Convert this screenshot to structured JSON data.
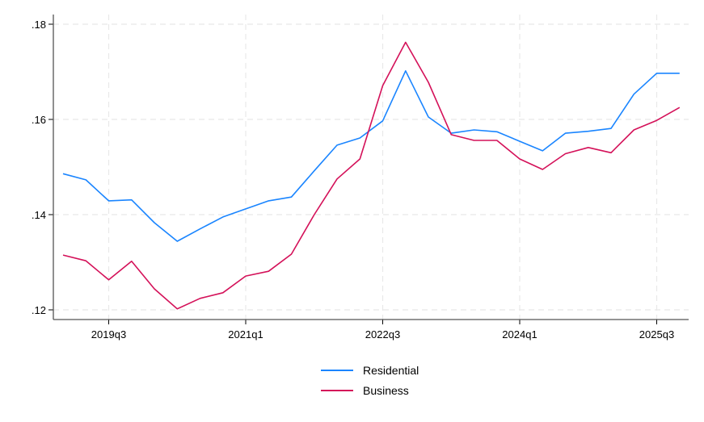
{
  "chart_data": {
    "type": "line",
    "title": "",
    "xlabel": "",
    "ylabel": "",
    "x": [
      "2019q1",
      "2019q2",
      "2019q3",
      "2019q4",
      "2020q1",
      "2020q2",
      "2020q3",
      "2020q4",
      "2021q1",
      "2021q2",
      "2021q3",
      "2021q4",
      "2022q1",
      "2022q2",
      "2022q3",
      "2022q4",
      "2023q1",
      "2023q2",
      "2023q3",
      "2023q4",
      "2024q1",
      "2024q2",
      "2024q3",
      "2024q4",
      "2025q1",
      "2025q2",
      "2025q3",
      "2025q4"
    ],
    "series": [
      {
        "name": "Residential",
        "color": "#1a85ff",
        "values": [
          0.1486,
          0.1473,
          0.1429,
          0.1431,
          0.1383,
          0.1344,
          0.137,
          0.1395,
          0.1412,
          0.1429,
          0.1437,
          0.1492,
          0.1546,
          0.1561,
          0.1597,
          0.1702,
          0.1605,
          0.1571,
          0.1578,
          0.1574,
          0.1554,
          0.1534,
          0.1571,
          0.1575,
          0.1581,
          0.1653,
          0.1697,
          0.1697
        ]
      },
      {
        "name": "Business",
        "color": "#d41159",
        "values": [
          0.1315,
          0.1303,
          0.1263,
          0.1302,
          0.1244,
          0.1202,
          0.1224,
          0.1236,
          0.1271,
          0.1281,
          0.1317,
          0.14,
          0.1475,
          0.1517,
          0.1671,
          0.1762,
          0.1678,
          0.1568,
          0.1556,
          0.1556,
          0.1517,
          0.1495,
          0.1528,
          0.1541,
          0.153,
          0.1578,
          0.1598,
          0.1625
        ]
      }
    ],
    "yticks": [
      0.12,
      0.14,
      0.16,
      0.18
    ],
    "ytick_labels": [
      ".12",
      ".14",
      ".16",
      ".18"
    ],
    "xticks": [
      "2019q3",
      "2021q1",
      "2022q3",
      "2024q1",
      "2025q3"
    ],
    "ylim": [
      0.118,
      0.182
    ],
    "grid": true,
    "legend_position": "bottom"
  },
  "legend": {
    "items": [
      {
        "label": "Residential",
        "color": "#1a85ff"
      },
      {
        "label": "Business",
        "color": "#d41159"
      }
    ]
  }
}
